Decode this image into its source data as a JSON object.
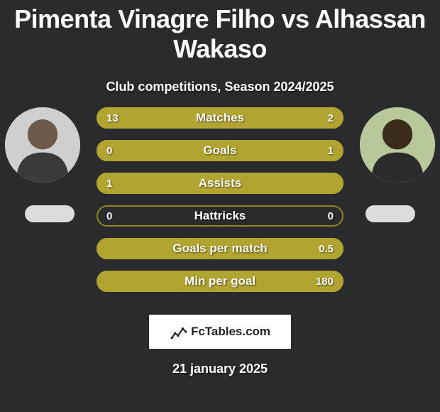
{
  "background_color": "#2a2b2d",
  "title": "Pimenta Vinagre Filho vs Alhassan Wakaso",
  "title_color": "#ffffff",
  "title_fontsize": 36,
  "subtitle": "Club competitions, Season 2024/2025",
  "subtitle_fontsize": 18,
  "player_left": {
    "name": "Pimenta Vinagre Filho"
  },
  "player_right": {
    "name": "Alhassan Wakaso"
  },
  "bar_colors": {
    "olive": "#8f8426",
    "olive_light": "#b2a431",
    "border": "#3c3c3c"
  },
  "bars": [
    {
      "label": "Matches",
      "left_value": "13",
      "right_value": "2",
      "left_fill_pct": 100,
      "right_fill_pct": 0,
      "left_fill_color": "#b2a431",
      "right_fill_color": "#8f8426",
      "bg_color": "#8f8426",
      "border_color": "#8f8426"
    },
    {
      "label": "Goals",
      "left_value": "0",
      "right_value": "1",
      "left_fill_pct": 0,
      "right_fill_pct": 100,
      "left_fill_color": "#8f8426",
      "right_fill_color": "#b2a431",
      "bg_color": "#8f8426",
      "border_color": "#8f8426"
    },
    {
      "label": "Assists",
      "left_value": "1",
      "right_value": "",
      "left_fill_pct": 100,
      "right_fill_pct": 0,
      "left_fill_color": "#b2a431",
      "right_fill_color": "#8f8426",
      "bg_color": "#8f8426",
      "border_color": "#8f8426"
    },
    {
      "label": "Hattricks",
      "left_value": "0",
      "right_value": "0",
      "left_fill_pct": 0,
      "right_fill_pct": 0,
      "left_fill_color": "#8f8426",
      "right_fill_color": "#8f8426",
      "bg_color": "transparent",
      "border_color": "#8f8426"
    },
    {
      "label": "Goals per match",
      "left_value": "",
      "right_value": "0.5",
      "left_fill_pct": 0,
      "right_fill_pct": 100,
      "left_fill_color": "#8f8426",
      "right_fill_color": "#b2a431",
      "bg_color": "#8f8426",
      "border_color": "#8f8426"
    },
    {
      "label": "Min per goal",
      "left_value": "",
      "right_value": "180",
      "left_fill_pct": 0,
      "right_fill_pct": 100,
      "left_fill_color": "#8f8426",
      "right_fill_color": "#b2a431",
      "bg_color": "#8f8426",
      "border_color": "#8f8426"
    }
  ],
  "brand": {
    "text": "FcTables.com",
    "bg": "#ffffff",
    "color": "#222222"
  },
  "date": "21 january 2025"
}
